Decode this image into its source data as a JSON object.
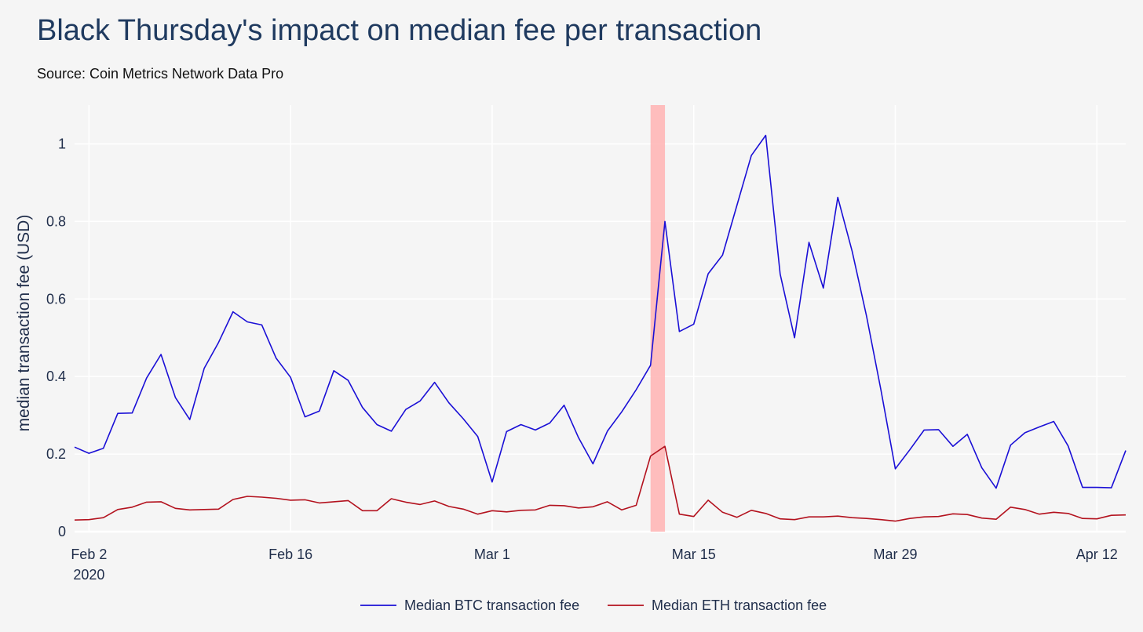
{
  "chart_data": {
    "type": "line",
    "title": "Black Thursday's impact on median fee per transaction",
    "subtitle": "Source: Coin Metrics Network Data Pro",
    "ylabel": "median transaction fee (USD)",
    "xlabel": "",
    "ylim": [
      0,
      1.1
    ],
    "yticks": [
      0,
      0.2,
      0.4,
      0.6,
      0.8,
      1
    ],
    "ytick_labels": [
      "0",
      "0.2",
      "0.4",
      "0.6",
      "0.8",
      "1"
    ],
    "xrange": [
      "2020-02-01",
      "2020-04-14"
    ],
    "xticks": [
      {
        "date": "2020-02-02",
        "label": "Feb 2",
        "sublabel": "2020"
      },
      {
        "date": "2020-02-16",
        "label": "Feb 16"
      },
      {
        "date": "2020-03-01",
        "label": "Mar 1"
      },
      {
        "date": "2020-03-15",
        "label": "Mar 15"
      },
      {
        "date": "2020-03-29",
        "label": "Mar 29"
      },
      {
        "date": "2020-04-12",
        "label": "Apr 12"
      }
    ],
    "highlight": {
      "start": "2020-03-12",
      "end": "2020-03-13",
      "color": "#ffb3b3"
    },
    "grid": true,
    "legend": "bottom-center",
    "x": [
      "2020-02-01",
      "2020-02-02",
      "2020-02-03",
      "2020-02-04",
      "2020-02-05",
      "2020-02-06",
      "2020-02-07",
      "2020-02-08",
      "2020-02-09",
      "2020-02-10",
      "2020-02-11",
      "2020-02-12",
      "2020-02-13",
      "2020-02-14",
      "2020-02-15",
      "2020-02-16",
      "2020-02-17",
      "2020-02-18",
      "2020-02-19",
      "2020-02-20",
      "2020-02-21",
      "2020-02-22",
      "2020-02-23",
      "2020-02-24",
      "2020-02-25",
      "2020-02-26",
      "2020-02-27",
      "2020-02-28",
      "2020-02-29",
      "2020-03-01",
      "2020-03-02",
      "2020-03-03",
      "2020-03-04",
      "2020-03-05",
      "2020-03-06",
      "2020-03-07",
      "2020-03-08",
      "2020-03-09",
      "2020-03-10",
      "2020-03-11",
      "2020-03-12",
      "2020-03-13",
      "2020-03-14",
      "2020-03-15",
      "2020-03-16",
      "2020-03-17",
      "2020-03-18",
      "2020-03-19",
      "2020-03-20",
      "2020-03-21",
      "2020-03-22",
      "2020-03-23",
      "2020-03-24",
      "2020-03-25",
      "2020-03-26",
      "2020-03-27",
      "2020-03-28",
      "2020-03-29",
      "2020-03-30",
      "2020-03-31",
      "2020-04-01",
      "2020-04-02",
      "2020-04-03",
      "2020-04-04",
      "2020-04-05",
      "2020-04-06",
      "2020-04-07",
      "2020-04-08",
      "2020-04-09",
      "2020-04-10",
      "2020-04-11",
      "2020-04-12",
      "2020-04-13",
      "2020-04-14"
    ],
    "series": [
      {
        "name": "Median BTC transaction fee",
        "color": "#1a0fd6",
        "values": [
          0.218,
          0.202,
          0.215,
          0.305,
          0.306,
          0.396,
          0.457,
          0.346,
          0.289,
          0.421,
          0.488,
          0.567,
          0.541,
          0.533,
          0.447,
          0.398,
          0.296,
          0.311,
          0.415,
          0.39,
          0.32,
          0.276,
          0.259,
          0.315,
          0.337,
          0.385,
          0.332,
          0.291,
          0.245,
          0.128,
          0.258,
          0.276,
          0.262,
          0.28,
          0.326,
          0.242,
          0.175,
          0.259,
          0.309,
          0.366,
          0.429,
          0.8,
          0.516,
          0.535,
          0.665,
          0.713,
          0.842,
          0.97,
          1.022,
          0.664,
          0.5,
          0.746,
          0.628,
          0.862,
          0.723,
          0.556,
          0.365,
          0.162,
          0.211,
          0.262,
          0.263,
          0.22,
          0.251,
          0.165,
          0.112,
          0.223,
          0.255,
          0.27,
          0.284,
          0.221,
          0.114,
          0.114,
          0.113,
          0.209
        ]
      },
      {
        "name": "Median ETH transaction fee",
        "color": "#b3121e",
        "values": [
          0.03,
          0.031,
          0.036,
          0.057,
          0.063,
          0.076,
          0.077,
          0.06,
          0.056,
          0.057,
          0.058,
          0.083,
          0.091,
          0.089,
          0.086,
          0.081,
          0.082,
          0.074,
          0.077,
          0.08,
          0.054,
          0.054,
          0.085,
          0.076,
          0.07,
          0.079,
          0.065,
          0.058,
          0.045,
          0.054,
          0.051,
          0.055,
          0.056,
          0.068,
          0.067,
          0.061,
          0.064,
          0.077,
          0.056,
          0.068,
          0.195,
          0.22,
          0.045,
          0.039,
          0.081,
          0.05,
          0.037,
          0.055,
          0.047,
          0.033,
          0.031,
          0.038,
          0.038,
          0.04,
          0.036,
          0.034,
          0.031,
          0.027,
          0.034,
          0.038,
          0.039,
          0.046,
          0.044,
          0.035,
          0.032,
          0.063,
          0.057,
          0.045,
          0.05,
          0.047,
          0.034,
          0.033,
          0.042,
          0.043
        ]
      }
    ]
  }
}
